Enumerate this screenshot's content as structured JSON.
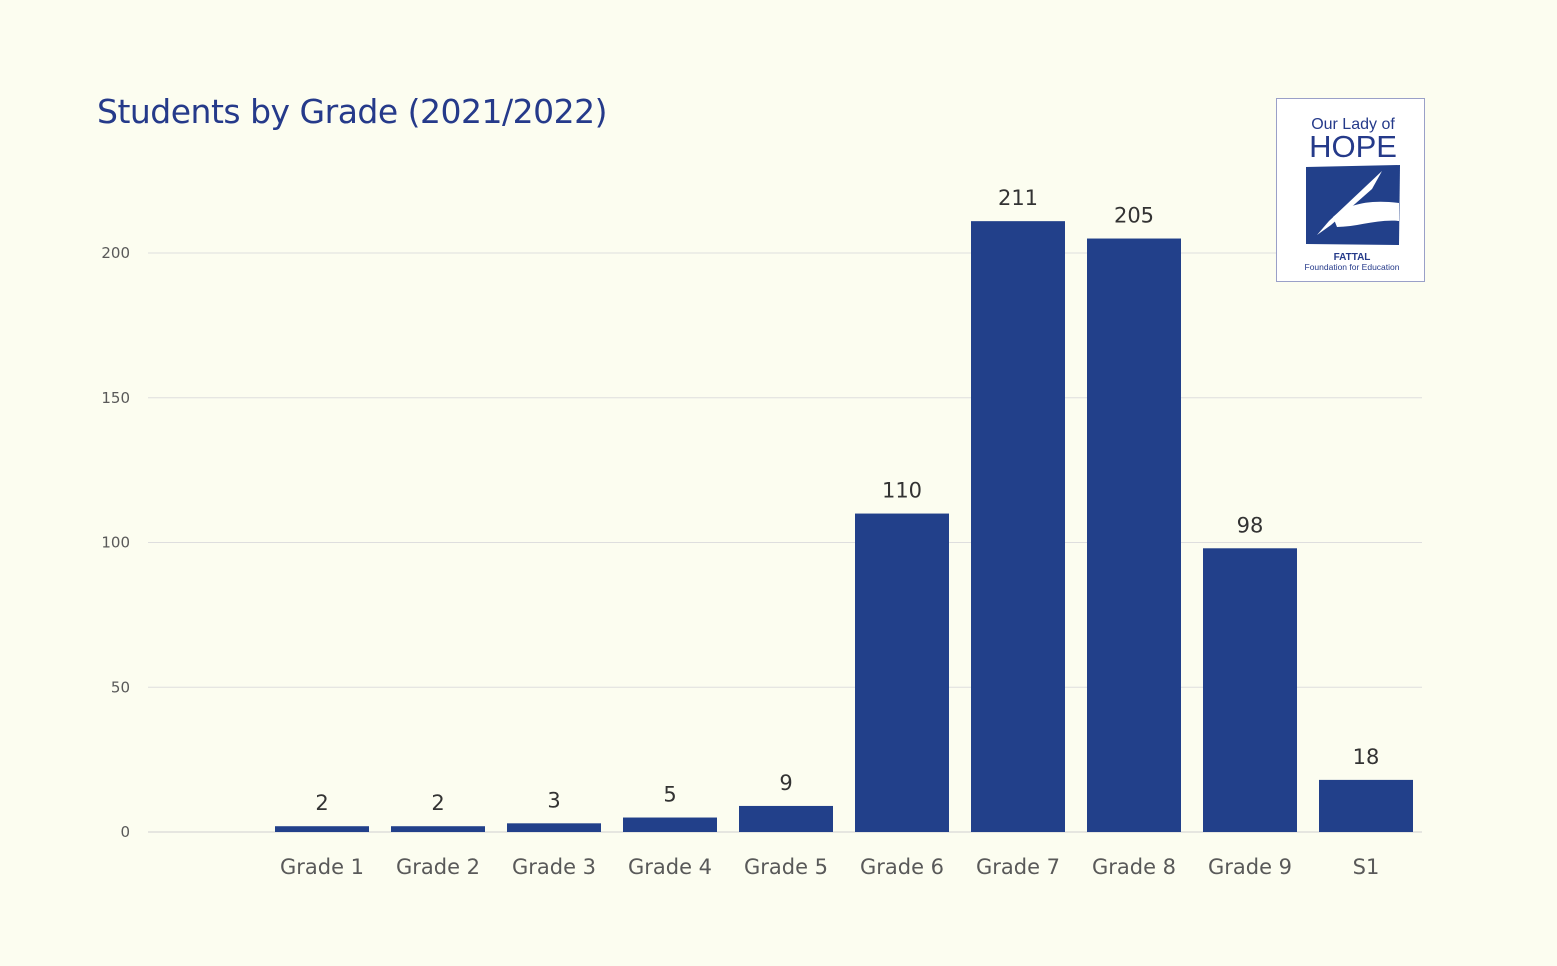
{
  "chart_data": {
    "type": "bar",
    "title": "Students by Grade (2021/2022)",
    "categories": [
      "Grade 1",
      "Grade 2",
      "Grade 3",
      "Grade 4",
      "Grade 5",
      "Grade 6",
      "Grade 7",
      "Grade 8",
      "Grade 9",
      "S1"
    ],
    "values": [
      2,
      2,
      3,
      5,
      9,
      110,
      211,
      205,
      98,
      18
    ],
    "xlabel": "",
    "ylabel": "",
    "ylim": [
      0,
      200
    ],
    "yticks": [
      0,
      50,
      100,
      150,
      200
    ],
    "grid": true,
    "bar_color": "#22408a"
  },
  "logo": {
    "line1": "Our Lady of",
    "line2": "HOPE",
    "line3": "FATTAL",
    "line4": "Foundation for Education"
  }
}
